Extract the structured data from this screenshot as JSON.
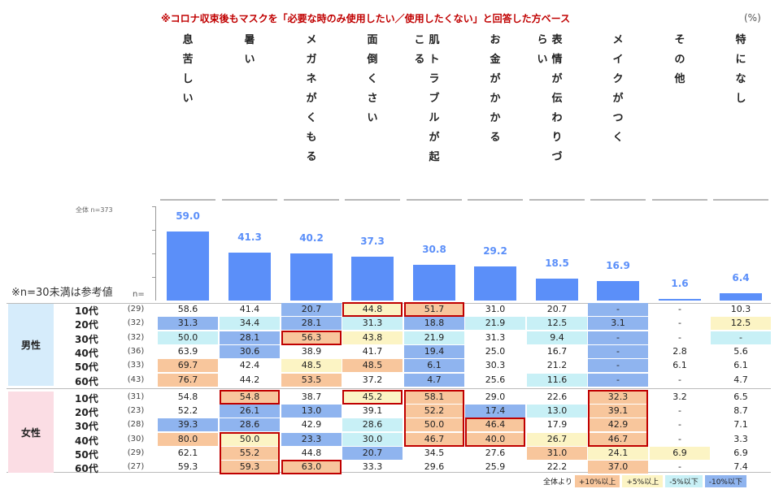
{
  "title": "※コロナ収束後もマスクを「必要な時のみ使用したい／使用したくない」と回答した方ベース",
  "unit": "(%)",
  "total_n_label": "全体 n=373",
  "note": "※n=30未満は参考値",
  "n_label": "n=",
  "legend": {
    "prefix": "全体より",
    "items": [
      "+10%以上",
      "+5%以上",
      "-5%以下",
      "-10%以下"
    ]
  },
  "colors": {
    "bar": "#5b8ff9",
    "plus10": "#f8c69c",
    "plus5": "#fcf4c4",
    "minus5": "#c8f0f6",
    "minus10": "#8fb4ef",
    "highlight": "#c00000"
  },
  "groups": [
    {
      "label": "男性",
      "rows": [
        0,
        1,
        2,
        3,
        4,
        5
      ]
    },
    {
      "label": "女性",
      "rows": [
        6,
        7,
        8,
        9,
        10,
        11
      ]
    }
  ],
  "chart_data": {
    "type": "bar",
    "categories": [
      "息苦しい",
      "暑い",
      "メガネがくもる",
      "面倒くさい",
      "肌トラブルが起こる",
      "お金がかかる",
      "表情が伝わりづらい",
      "メイクがつく",
      "その他",
      "特になし"
    ],
    "values": [
      59.0,
      41.3,
      40.2,
      37.3,
      30.8,
      29.2,
      18.5,
      16.9,
      1.6,
      6.4
    ],
    "value_labels": [
      "59.0",
      "41.3",
      "40.2",
      "37.3",
      "30.8",
      "29.2",
      "18.5",
      "16.9",
      "1.6",
      "6.4"
    ],
    "ylim": [
      0,
      60
    ],
    "table": {
      "rows": [
        {
          "age": "10代",
          "n": "(29)",
          "values": [
            "58.6",
            "41.4",
            "20.7",
            "44.8",
            "51.7",
            "31.0",
            "20.7",
            "-",
            "-",
            "10.3"
          ],
          "shade": [
            "",
            "",
            "m10",
            "p5",
            "p10",
            "",
            "",
            "m10",
            "",
            ""
          ],
          "box": [
            3,
            4
          ]
        },
        {
          "age": "20代",
          "n": "(32)",
          "values": [
            "31.3",
            "34.4",
            "28.1",
            "31.3",
            "18.8",
            "21.9",
            "12.5",
            "3.1",
            "-",
            "12.5"
          ],
          "shade": [
            "m10",
            "m5",
            "m10",
            "m5",
            "m10",
            "m5",
            "m5",
            "m10",
            "",
            "p5"
          ],
          "box": []
        },
        {
          "age": "30代",
          "n": "(32)",
          "values": [
            "50.0",
            "28.1",
            "56.3",
            "43.8",
            "21.9",
            "31.3",
            "9.4",
            "-",
            "-",
            "-"
          ],
          "shade": [
            "m5",
            "m10",
            "p10",
            "p5",
            "m5",
            "",
            "m5",
            "m10",
            "",
            "m5"
          ],
          "box": [
            2
          ]
        },
        {
          "age": "40代",
          "n": "(36)",
          "values": [
            "63.9",
            "30.6",
            "38.9",
            "41.7",
            "19.4",
            "25.0",
            "16.7",
            "-",
            "2.8",
            "5.6"
          ],
          "shade": [
            "",
            "m10",
            "",
            "",
            "m10",
            "",
            "",
            "m10",
            "",
            ""
          ],
          "box": []
        },
        {
          "age": "50代",
          "n": "(33)",
          "values": [
            "69.7",
            "42.4",
            "48.5",
            "48.5",
            "6.1",
            "30.3",
            "21.2",
            "-",
            "6.1",
            "6.1"
          ],
          "shade": [
            "p10",
            "",
            "p5",
            "p10",
            "m10",
            "",
            "",
            "m10",
            "",
            ""
          ],
          "box": []
        },
        {
          "age": "60代",
          "n": "(43)",
          "values": [
            "76.7",
            "44.2",
            "53.5",
            "37.2",
            "4.7",
            "25.6",
            "11.6",
            "-",
            "-",
            "4.7"
          ],
          "shade": [
            "p10",
            "",
            "p10",
            "",
            "m10",
            "",
            "m5",
            "m10",
            "",
            ""
          ],
          "box": []
        },
        {
          "age": "10代",
          "n": "(31)",
          "values": [
            "54.8",
            "54.8",
            "38.7",
            "45.2",
            "58.1",
            "29.0",
            "22.6",
            "32.3",
            "3.2",
            "6.5"
          ],
          "shade": [
            "",
            "p10",
            "",
            "p5",
            "p10",
            "",
            "",
            "p10",
            "",
            ""
          ],
          "box": [
            1,
            3
          ]
        },
        {
          "age": "20代",
          "n": "(23)",
          "values": [
            "52.2",
            "26.1",
            "13.0",
            "39.1",
            "52.2",
            "17.4",
            "13.0",
            "39.1",
            "-",
            "8.7"
          ],
          "shade": [
            "",
            "m10",
            "m10",
            "",
            "p10",
            "m10",
            "m5",
            "p10",
            "",
            ""
          ],
          "box": []
        },
        {
          "age": "30代",
          "n": "(28)",
          "values": [
            "39.3",
            "28.6",
            "42.9",
            "28.6",
            "50.0",
            "46.4",
            "17.9",
            "42.9",
            "-",
            "7.1"
          ],
          "shade": [
            "m10",
            "m10",
            "",
            "m5",
            "p10",
            "p10",
            "",
            "p10",
            "",
            ""
          ],
          "box": []
        },
        {
          "age": "40代",
          "n": "(30)",
          "values": [
            "80.0",
            "50.0",
            "23.3",
            "30.0",
            "46.7",
            "40.0",
            "26.7",
            "46.7",
            "-",
            "3.3"
          ],
          "shade": [
            "p10",
            "p5",
            "m10",
            "m5",
            "p10",
            "p10",
            "p5",
            "p10",
            "",
            ""
          ],
          "box": []
        },
        {
          "age": "50代",
          "n": "(29)",
          "values": [
            "62.1",
            "55.2",
            "44.8",
            "20.7",
            "34.5",
            "27.6",
            "31.0",
            "24.1",
            "6.9",
            "6.9"
          ],
          "shade": [
            "",
            "p10",
            "",
            "m10",
            "",
            "",
            "p10",
            "p5",
            "p5",
            ""
          ],
          "box": []
        },
        {
          "age": "60代",
          "n": "(27)",
          "values": [
            "59.3",
            "59.3",
            "63.0",
            "33.3",
            "29.6",
            "25.9",
            "22.2",
            "37.0",
            "-",
            "7.4"
          ],
          "shade": [
            "",
            "p10",
            "p10",
            "",
            "",
            "",
            "",
            "p10",
            "",
            ""
          ],
          "box": [
            2
          ]
        }
      ],
      "group_boxes": [
        {
          "col": 4,
          "from": 6,
          "to": 9
        },
        {
          "col": 5,
          "from": 8,
          "to": 9
        },
        {
          "col": 7,
          "from": 6,
          "to": 9
        },
        {
          "col": 1,
          "from": 9,
          "to": 11
        }
      ]
    }
  }
}
